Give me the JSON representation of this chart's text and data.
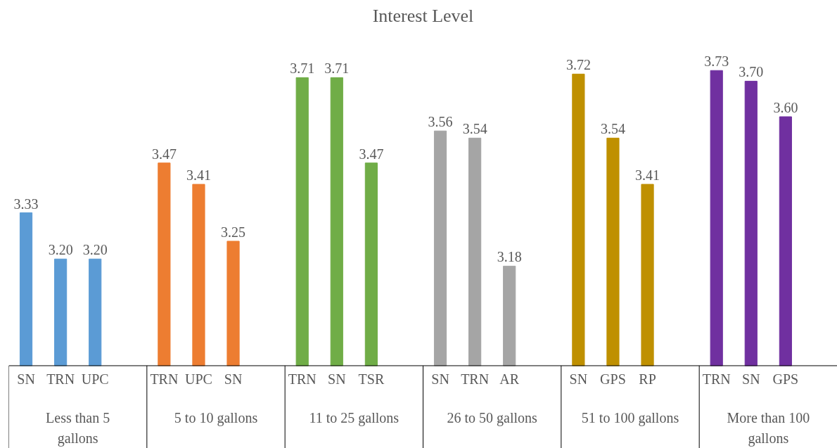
{
  "chart_data": {
    "type": "bar",
    "title": "Interest Level",
    "categories": [
      "SN",
      "TRN",
      "UPC",
      "TRN",
      "UPC",
      "SN",
      "TRN",
      "SN",
      "TSR",
      "SN",
      "TRN",
      "AR",
      "SN",
      "GPS",
      "RP",
      "TRN",
      "SN",
      "GPS"
    ],
    "ylim": [
      2.9,
      3.73
    ],
    "annotations": [
      "Less than 5 gallons",
      "5 to 10 gallons",
      "11 to 25 gallons",
      "26 to 50 gallons",
      "51 to 100 gallons",
      "More than 100 gallons"
    ],
    "series": [
      {
        "color": "#5b9bd5",
        "values": [
          3.33,
          3.2,
          3.2,
          null,
          null,
          null,
          null,
          null,
          null,
          null,
          null,
          null,
          null,
          null,
          null,
          null,
          null,
          null
        ],
        "value_labels": [
          "3.33",
          "3.20",
          "3.20",
          null,
          null,
          null,
          null,
          null,
          null,
          null,
          null,
          null,
          null,
          null,
          null,
          null,
          null,
          null
        ]
      },
      {
        "color": "#ed7d31",
        "values": [
          null,
          null,
          null,
          3.47,
          3.41,
          3.25,
          null,
          null,
          null,
          null,
          null,
          null,
          null,
          null,
          null,
          null,
          null,
          null
        ],
        "value_labels": [
          null,
          null,
          null,
          "3.47",
          "3.41",
          "3.25",
          null,
          null,
          null,
          null,
          null,
          null,
          null,
          null,
          null,
          null,
          null,
          null
        ]
      },
      {
        "color": "#70ad47",
        "values": [
          null,
          null,
          null,
          null,
          null,
          null,
          3.71,
          3.71,
          3.47,
          null,
          null,
          null,
          null,
          null,
          null,
          null,
          null,
          null
        ],
        "value_labels": [
          null,
          null,
          null,
          null,
          null,
          null,
          "3.71",
          "3.71",
          "3.47",
          null,
          null,
          null,
          null,
          null,
          null,
          null,
          null,
          null
        ]
      },
      {
        "color": "#a5a5a5",
        "values": [
          null,
          null,
          null,
          null,
          null,
          null,
          null,
          null,
          null,
          3.56,
          3.54,
          3.18,
          null,
          null,
          null,
          null,
          null,
          null
        ],
        "value_labels": [
          null,
          null,
          null,
          null,
          null,
          null,
          null,
          null,
          null,
          "3.56",
          "3.54",
          "3.18",
          null,
          null,
          null,
          null,
          null,
          null
        ]
      },
      {
        "color": "#bf9000",
        "values": [
          null,
          null,
          null,
          null,
          null,
          null,
          null,
          null,
          null,
          null,
          null,
          null,
          3.72,
          3.54,
          3.41,
          null,
          null,
          null
        ],
        "value_labels": [
          null,
          null,
          null,
          null,
          null,
          null,
          null,
          null,
          null,
          null,
          null,
          null,
          "3.72",
          "3.54",
          "3.41",
          null,
          null,
          null
        ]
      },
      {
        "color": "#7030a0",
        "values": [
          null,
          null,
          null,
          null,
          null,
          null,
          null,
          null,
          null,
          null,
          null,
          null,
          null,
          null,
          null,
          3.73,
          3.7,
          3.6
        ],
        "value_labels": [
          null,
          null,
          null,
          null,
          null,
          null,
          null,
          null,
          null,
          null,
          null,
          null,
          null,
          null,
          null,
          "3.73",
          "3.70",
          "3.60"
        ]
      }
    ]
  }
}
